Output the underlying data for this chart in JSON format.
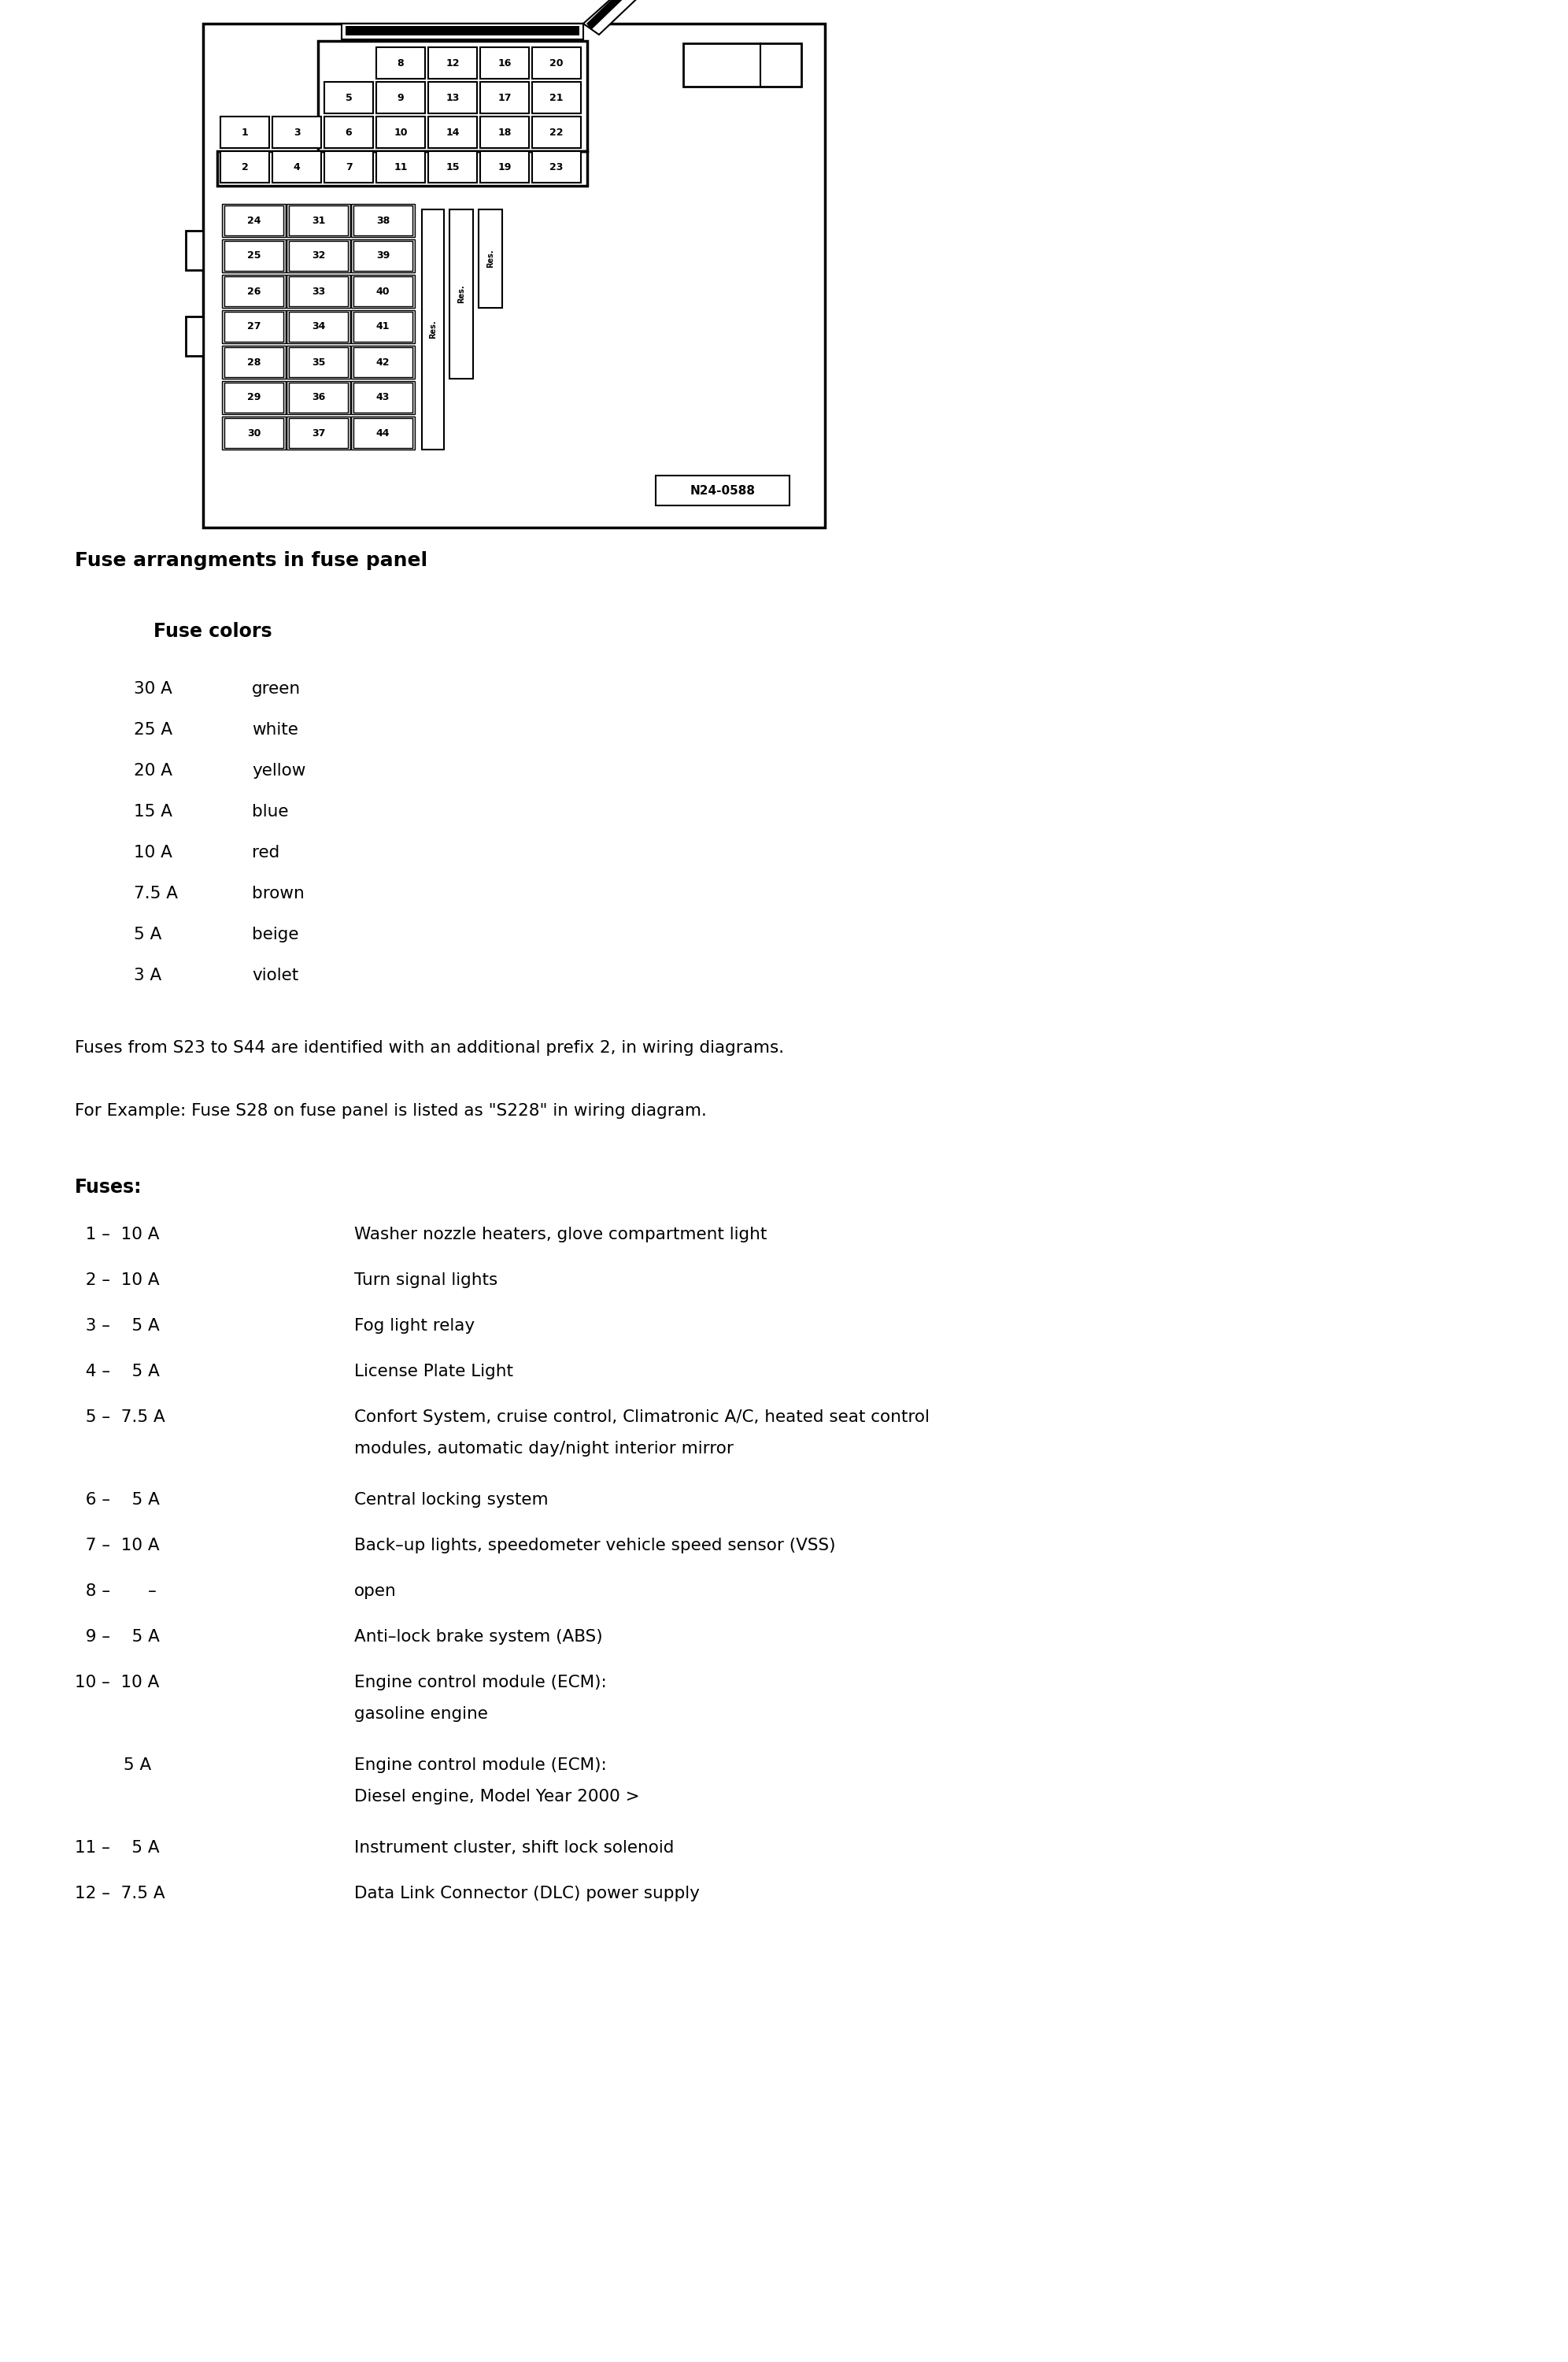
{
  "section1_title": "Fuse arrangments in fuse panel",
  "section2_title": "Fuse colors",
  "fuse_colors": [
    [
      "30 A",
      "green"
    ],
    [
      "25 A",
      "white"
    ],
    [
      "20 A",
      "yellow"
    ],
    [
      "15 A",
      "blue"
    ],
    [
      "10 A",
      "red"
    ],
    [
      "7.5 A",
      "brown"
    ],
    [
      "5 A",
      "beige"
    ],
    [
      "3 A",
      "violet"
    ]
  ],
  "note1": "Fuses from S23 to S44 are identified with an additional prefix 2, in wiring diagrams.",
  "note2": "For Example: Fuse S28 on fuse panel is listed as \"S228\" in wiring diagram.",
  "fuses_title": "Fuses:",
  "fuses": [
    {
      "num": "  1 –  10 A",
      "desc": "Washer nozzle heaters, glove compartment light",
      "desc2": null
    },
    {
      "num": "  2 –  10 A",
      "desc": "Turn signal lights",
      "desc2": null
    },
    {
      "num": "  3 –    5 A",
      "desc": "Fog light relay",
      "desc2": null
    },
    {
      "num": "  4 –    5 A",
      "desc": "License Plate Light",
      "desc2": null
    },
    {
      "num": "  5 –  7.5 A",
      "desc": "Confort System, cruise control, Climatronic A/C, heated seat control",
      "desc2": "modules, automatic day/night interior mirror"
    },
    {
      "num": "  6 –    5 A",
      "desc": "Central locking system",
      "desc2": null
    },
    {
      "num": "  7 –  10 A",
      "desc": "Back–up lights, speedometer vehicle speed sensor (VSS)",
      "desc2": null
    },
    {
      "num": "  8 –       –",
      "desc": "open",
      "desc2": null
    },
    {
      "num": "  9 –    5 A",
      "desc": "Anti–lock brake system (ABS)",
      "desc2": null
    },
    {
      "num": "10 –  10 A",
      "desc": "Engine control module (ECM):",
      "desc2": "gasoline engine"
    },
    {
      "num": "         5 A",
      "desc": "Engine control module (ECM):",
      "desc2": "Diesel engine, Model Year 2000 >"
    },
    {
      "num": "11 –    5 A",
      "desc": "Instrument cluster, shift lock solenoid",
      "desc2": null
    },
    {
      "num": "12 –  7.5 A",
      "desc": "Data Link Connector (DLC) power supply",
      "desc2": null
    }
  ],
  "bg_color": "#ffffff",
  "text_color": "#000000"
}
